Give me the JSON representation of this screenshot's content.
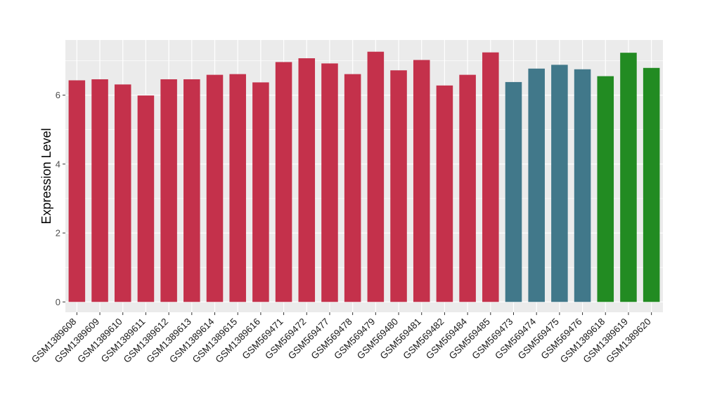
{
  "chart_data": {
    "type": "bar",
    "title": "",
    "xlabel": "",
    "ylabel": "Expression Level",
    "ylim": [
      -0.3,
      7.6
    ],
    "yticks": [
      0,
      2,
      4,
      6
    ],
    "grid": true,
    "legend": "none",
    "colors": {
      "panel": "#ebebeb",
      "gridline": "#ffffff",
      "tick": "#333333",
      "group_red": "#c4314b",
      "group_blue": "#41788a",
      "group_green": "#228b22"
    },
    "categories": [
      "GSM1389608",
      "GSM1389609",
      "GSM1389610",
      "GSM1389611",
      "GSM1389612",
      "GSM1389613",
      "GSM1389614",
      "GSM1389615",
      "GSM1389616",
      "GSM569471",
      "GSM569472",
      "GSM569477",
      "GSM569478",
      "GSM569479",
      "GSM569480",
      "GSM569481",
      "GSM569482",
      "GSM569484",
      "GSM569485",
      "GSM569473",
      "GSM569474",
      "GSM569475",
      "GSM569476",
      "GSM1389618",
      "GSM1389619",
      "GSM1389620"
    ],
    "values": [
      6.43,
      6.46,
      6.31,
      5.99,
      6.46,
      6.46,
      6.59,
      6.61,
      6.37,
      6.96,
      7.07,
      6.92,
      6.61,
      7.26,
      6.72,
      7.02,
      6.28,
      6.59,
      7.24,
      6.38,
      6.77,
      6.88,
      6.75,
      6.55,
      7.23,
      6.79
    ],
    "bar_groups": [
      "group_red",
      "group_red",
      "group_red",
      "group_red",
      "group_red",
      "group_red",
      "group_red",
      "group_red",
      "group_red",
      "group_red",
      "group_red",
      "group_red",
      "group_red",
      "group_red",
      "group_red",
      "group_red",
      "group_red",
      "group_red",
      "group_red",
      "group_blue",
      "group_blue",
      "group_blue",
      "group_blue",
      "group_green",
      "group_green",
      "group_green"
    ]
  }
}
